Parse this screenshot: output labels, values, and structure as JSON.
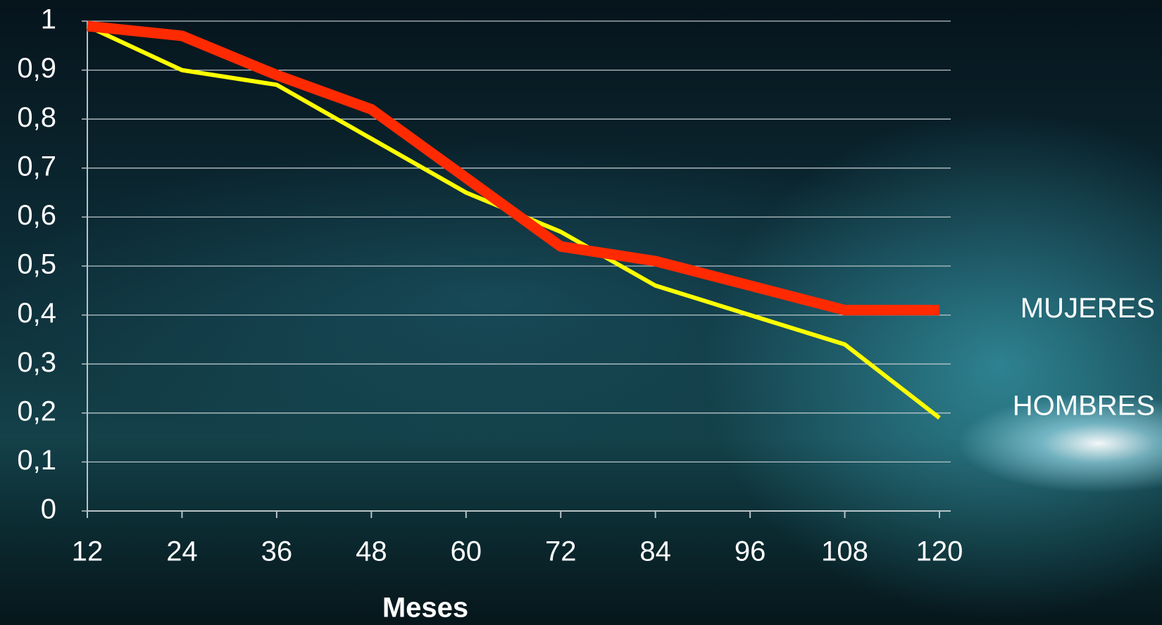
{
  "chart_data": {
    "type": "line",
    "x": [
      12,
      24,
      36,
      48,
      60,
      72,
      84,
      96,
      108,
      120
    ],
    "xlim": [
      12,
      120
    ],
    "xticks": [
      12,
      24,
      36,
      48,
      60,
      72,
      84,
      96,
      108,
      120
    ],
    "ylim": [
      0,
      1
    ],
    "yticks": [
      0,
      {
        "value": 0.1,
        "label": "0,1"
      },
      {
        "value": 0.2,
        "label": "0,2"
      },
      {
        "value": 0.3,
        "label": "0,3"
      },
      {
        "value": 0.4,
        "label": "0,4"
      },
      {
        "value": 0.5,
        "label": "0,5"
      },
      {
        "value": 0.6,
        "label": "0,6"
      },
      {
        "value": 0.7,
        "label": "0,7"
      },
      {
        "value": 0.8,
        "label": "0,8"
      },
      {
        "value": 0.9,
        "label": "0,9"
      },
      1
    ],
    "x_label": "Meses",
    "grid": true,
    "series": [
      {
        "name": "HOMBRES",
        "color": "#ffff00",
        "values": [
          0.99,
          0.9,
          0.87,
          0.76,
          0.65,
          0.57,
          0.46,
          0.4,
          0.34,
          0.19
        ]
      },
      {
        "name": "MUJERES",
        "color": "#ff2a00",
        "values": [
          0.99,
          0.97,
          0.89,
          0.82,
          0.68,
          0.54,
          0.51,
          0.46,
          0.41,
          0.41
        ]
      }
    ]
  }
}
